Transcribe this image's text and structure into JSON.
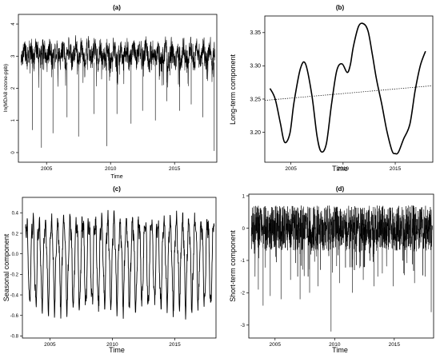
{
  "chart_data": [
    {
      "panel": "a",
      "type": "line",
      "title": "(a)",
      "xlabel": "Time",
      "ylabel": "ln(MDA8 ozone-ppb)",
      "xlim": [
        2002.8,
        2018.3
      ],
      "ylim": [
        -0.3,
        4.3
      ],
      "xticks": [
        2005,
        2010,
        2015
      ],
      "yticks": [
        0,
        1,
        2,
        3,
        4
      ],
      "dip_points": [
        [
          2003.9,
          0.7
        ],
        [
          2004.6,
          0.15
        ],
        [
          2005.5,
          0.6
        ],
        [
          2006.6,
          1.1
        ],
        [
          2007.5,
          0.5
        ],
        [
          2008.7,
          1.2
        ],
        [
          2009.7,
          0.2
        ],
        [
          2010.5,
          1.2
        ],
        [
          2011.6,
          0.9
        ],
        [
          2012.5,
          1.3
        ],
        [
          2013.5,
          1.0
        ],
        [
          2014.4,
          1.6
        ],
        [
          2015.4,
          1.3
        ],
        [
          2016.3,
          1.5
        ],
        [
          2017.2,
          1.1
        ],
        [
          2018.1,
          0.05
        ]
      ],
      "summary": {
        "typical_low": 2.6,
        "typical_high": 3.8,
        "peak_max": 4.2
      },
      "grid": false
    },
    {
      "panel": "b",
      "type": "line",
      "title": "(b)",
      "xlabel": "Time",
      "ylabel": "Long-term component",
      "xlim": [
        2002.5,
        2018.6
      ],
      "ylim": [
        3.155,
        3.375
      ],
      "xticks": [
        2005,
        2010,
        2015
      ],
      "yticks": [
        3.2,
        3.25,
        3.3,
        3.35
      ],
      "series": [
        {
          "x": [
            2003.0,
            2003.5,
            2004.0,
            2004.4,
            2004.9,
            2005.3,
            2005.9,
            2006.4,
            2007.0,
            2007.5,
            2007.9,
            2008.4,
            2008.9,
            2009.4,
            2009.9,
            2010.4,
            2010.7,
            2011.0,
            2011.5,
            2012.0,
            2012.4,
            2012.8,
            2013.2,
            2013.7,
            2014.2,
            2014.7,
            2015.0,
            2015.3,
            2015.8,
            2016.4,
            2016.9,
            2017.4,
            2017.9
          ],
          "y": [
            3.266,
            3.25,
            3.213,
            3.185,
            3.198,
            3.245,
            3.295,
            3.303,
            3.257,
            3.195,
            3.171,
            3.183,
            3.243,
            3.293,
            3.303,
            3.29,
            3.302,
            3.33,
            3.36,
            3.363,
            3.352,
            3.318,
            3.28,
            3.243,
            3.202,
            3.172,
            3.168,
            3.17,
            3.19,
            3.212,
            3.262,
            3.3,
            3.322
          ]
        }
      ],
      "trend": {
        "style": "dotted",
        "x": [
          2002.5,
          2018.5
        ],
        "y": [
          3.248,
          3.27
        ]
      },
      "grid": false
    },
    {
      "panel": "c",
      "type": "line",
      "title": "(c)",
      "xlabel": "Time",
      "ylabel": "Seasonal component",
      "xlim": [
        2002.8,
        2018.3
      ],
      "ylim": [
        -0.82,
        0.55
      ],
      "xticks": [
        2005,
        2010,
        2015
      ],
      "yticks": [
        -0.8,
        -0.6,
        -0.4,
        -0.2,
        0,
        0.2,
        0.4
      ],
      "summary": {
        "period_years": 0.5,
        "amplitude_high": 0.45,
        "amplitude_low": -0.7
      },
      "grid": false
    },
    {
      "panel": "d",
      "type": "line",
      "title": "(d)",
      "xlabel": "Time",
      "ylabel": "Short-term component",
      "xlim": [
        2002.8,
        2018.3
      ],
      "ylim": [
        -3.4,
        1.05
      ],
      "xticks": [
        2005,
        2010,
        2015
      ],
      "yticks": [
        -3,
        -2,
        -1,
        0,
        1
      ],
      "dip_points": [
        [
          2003.6,
          -1.9
        ],
        [
          2004.0,
          -2.4
        ],
        [
          2004.6,
          -2.1
        ],
        [
          2005.5,
          -2.2
        ],
        [
          2006.3,
          -1.6
        ],
        [
          2007.1,
          -2.2
        ],
        [
          2007.9,
          -2.0
        ],
        [
          2008.6,
          -1.8
        ],
        [
          2009.7,
          -3.2
        ],
        [
          2010.4,
          -1.7
        ],
        [
          2011.5,
          -2.0
        ],
        [
          2012.4,
          -1.6
        ],
        [
          2013.3,
          -1.8
        ],
        [
          2014.0,
          -1.4
        ],
        [
          2014.9,
          -1.8
        ],
        [
          2015.8,
          -1.4
        ],
        [
          2016.7,
          -1.7
        ],
        [
          2017.6,
          -1.5
        ],
        [
          2018.1,
          -2.6
        ]
      ],
      "summary": {
        "band_low": -1.0,
        "band_high": 0.8
      },
      "grid": false
    }
  ]
}
